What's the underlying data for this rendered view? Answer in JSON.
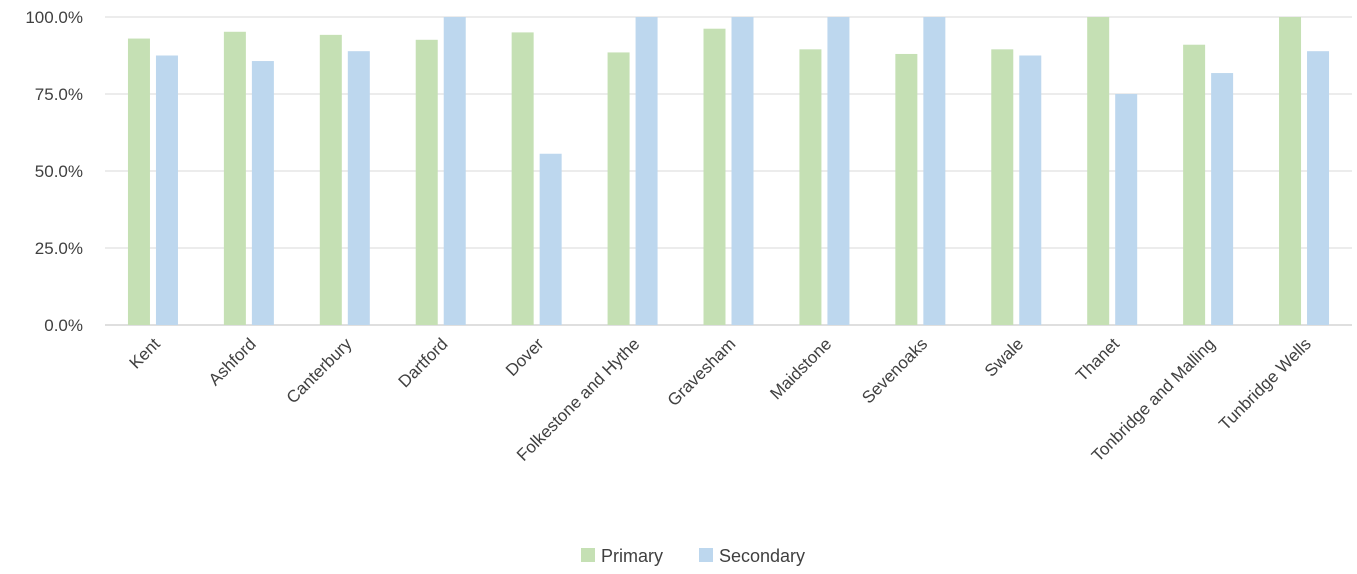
{
  "chart_data": {
    "type": "bar",
    "title": "",
    "xlabel": "",
    "ylabel": "",
    "ylim": [
      0,
      100
    ],
    "y_ticks": [
      "0.0%",
      "25.0%",
      "50.0%",
      "75.0%",
      "100.0%"
    ],
    "y_tick_values": [
      0,
      25,
      50,
      75,
      100
    ],
    "grid": true,
    "legend_position": "bottom",
    "categories": [
      "Kent",
      "Ashford",
      "Canterbury",
      "Dartford",
      "Dover",
      "Folkestone and Hythe",
      "Gravesham",
      "Maidstone",
      "Sevenoaks",
      "Swale",
      "Thanet",
      "Tonbridge and Malling",
      "Tunbridge Wells"
    ],
    "series": [
      {
        "name": "Primary",
        "color": "#c5e0b4",
        "values": [
          93.0,
          95.2,
          94.2,
          92.6,
          95.0,
          88.5,
          96.2,
          89.5,
          88.0,
          89.5,
          100.0,
          91.0,
          100.0
        ]
      },
      {
        "name": "Secondary",
        "color": "#bdd7ee",
        "values": [
          87.5,
          85.7,
          88.9,
          100.0,
          55.6,
          100.0,
          100.0,
          100.0,
          100.0,
          87.5,
          75.0,
          81.8,
          88.9
        ]
      }
    ]
  }
}
